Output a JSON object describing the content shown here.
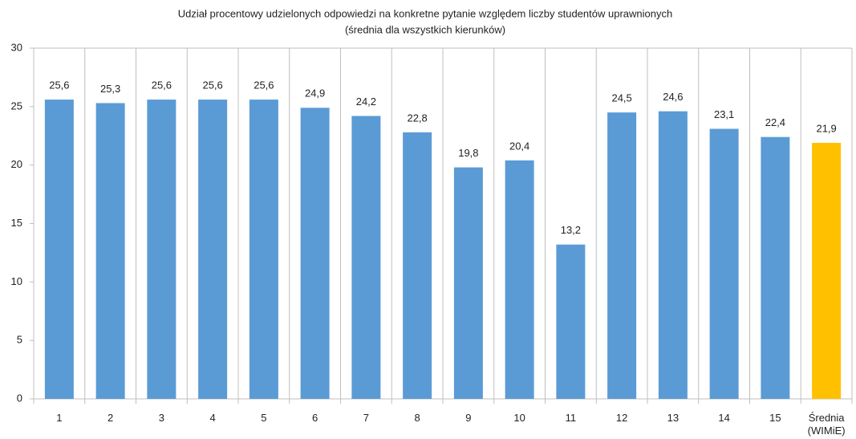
{
  "chart_data": {
    "type": "bar",
    "title": "Udział procentowy udzielonych odpowiedzi na konkretne pytanie względem liczby studentów uprawnionych",
    "subtitle": "(średnia dla wszystkich kierunków)",
    "categories": [
      "1",
      "2",
      "3",
      "4",
      "5",
      "6",
      "7",
      "8",
      "9",
      "10",
      "11",
      "12",
      "13",
      "14",
      "15",
      "Średnia (WIMiE)"
    ],
    "values": [
      25.6,
      25.3,
      25.6,
      25.6,
      25.6,
      24.9,
      24.2,
      22.8,
      19.8,
      20.4,
      13.2,
      24.5,
      24.6,
      23.1,
      22.4,
      21.9
    ],
    "value_labels": [
      "25,6",
      "25,3",
      "25,6",
      "25,6",
      "25,6",
      "24,9",
      "24,2",
      "22,8",
      "19,8",
      "20,4",
      "13,2",
      "24,5",
      "24,6",
      "23,1",
      "22,4",
      "21,9"
    ],
    "colors": [
      "#5b9bd5",
      "#5b9bd5",
      "#5b9bd5",
      "#5b9bd5",
      "#5b9bd5",
      "#5b9bd5",
      "#5b9bd5",
      "#5b9bd5",
      "#5b9bd5",
      "#5b9bd5",
      "#5b9bd5",
      "#5b9bd5",
      "#5b9bd5",
      "#5b9bd5",
      "#5b9bd5",
      "#ffc000"
    ],
    "ylim": [
      0,
      30
    ],
    "yticks": [
      0,
      5,
      10,
      15,
      20,
      25,
      30
    ],
    "grid": false
  }
}
